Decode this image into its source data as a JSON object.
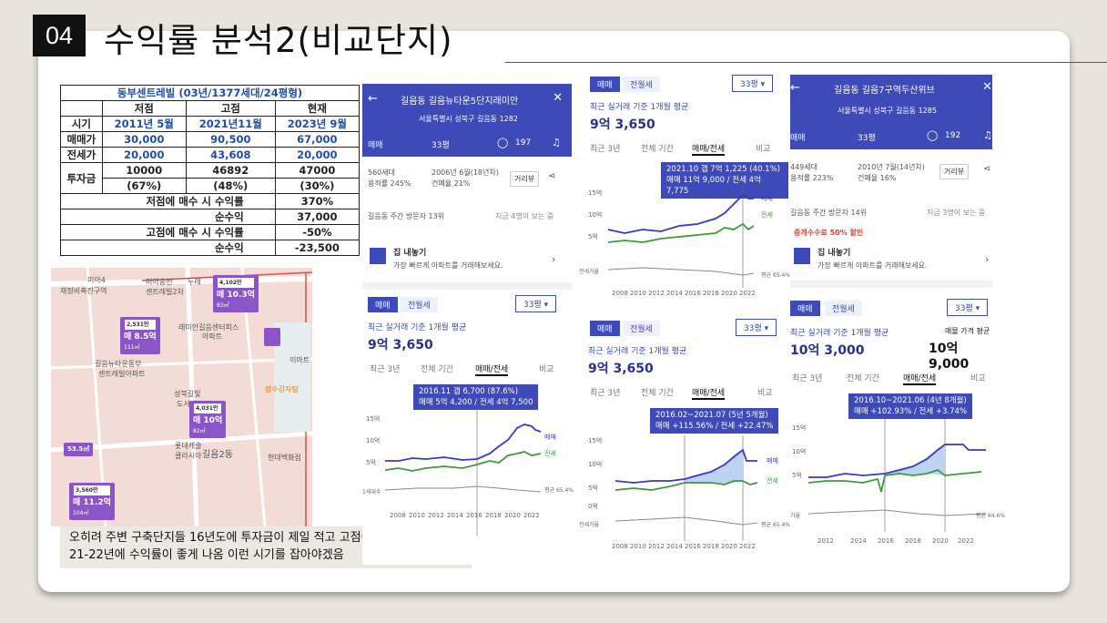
{
  "slide": {
    "number": "04",
    "title": "수익률 분석2(비교단지)"
  },
  "table": {
    "header": "동부센트레빌 (03년/1377세대/24평형)",
    "cols": [
      "저점",
      "고점",
      "현재"
    ],
    "rows": [
      {
        "label": "시기",
        "v": [
          "2011년 5월",
          "2021년11월",
          "2023년 9월"
        ]
      },
      {
        "label": "매매가",
        "v": [
          "30,000",
          "90,500",
          "67,000"
        ]
      },
      {
        "label": "전세가",
        "v": [
          "20,000",
          "43,608",
          "20,000"
        ]
      },
      {
        "label": "투자금",
        "v": [
          "10000",
          "46892",
          "47000"
        ],
        "v2": [
          "(67%)",
          "(48%)",
          "(30%)"
        ]
      }
    ],
    "summary": [
      {
        "label": "저점에 매수 시 수익률",
        "value": "370%"
      },
      {
        "label": "순수익",
        "value": "37,000"
      },
      {
        "label": "고점에 매수 시 수익률",
        "value": "-50%"
      },
      {
        "label": "순수익",
        "value": "-23,500"
      }
    ]
  },
  "map": {
    "labels": [
      "미아4",
      "재정비촉진구역",
      "미아송천",
      "센트레빌2차",
      "두레",
      "래미안길음센터피스",
      "아파트",
      "길음뉴타운동부",
      "센트레빌아파트",
      "이마트",
      "성북길빛",
      "도서관",
      "장수감자탕",
      "롯데캐슬",
      "클라시아",
      "길음2동",
      "현대백화점"
    ],
    "markers": [
      {
        "top": "2,531만",
        "price": "매 8.5억",
        "area": "111㎡"
      },
      {
        "top": "4,102만",
        "price": "매 10.3억",
        "area": "83㎡"
      },
      {
        "top": "4,031만",
        "price": "매 10억",
        "area": "82㎡"
      },
      {
        "top": "3,560만",
        "price": "매 11.2억",
        "area": "104㎡"
      }
    ],
    "extra": "53.5㎡"
  },
  "caption": "오히려 주변 구축단지들 16년도에 투자금이 제일 적고 고점이\n21-22년에 수익률이 좋게 나옴 이런 시기를 잡아야겠음",
  "panelA": {
    "name": "길음동 길음뉴타운5단지래미안",
    "address": "서울특별시 성북구 길음동 1282",
    "trade": "매매",
    "size": "33평",
    "comments": "197",
    "households": "560세대",
    "built": "2006년 6월(18년차)",
    "far": "용적률 245%",
    "bcr": "건폐율 21%",
    "street": "거리뷰",
    "visitors": "길음동 주간 방문자 13위",
    "now": "지금 4명이 보는 중",
    "home_title": "집 내놓기",
    "home_desc": "가장 빠르게 아파트를 거래해보세요.",
    "seg_on": "매매",
    "seg_off": "전월세",
    "dropdown": "33평 ▾",
    "subtitle": "최근 실거래 기준 1개월 평균",
    "price": "9억 3,650",
    "tabs": [
      "최근 3년",
      "전체 기간",
      "매매/전세",
      "비교"
    ],
    "tip1": "2016.11  갭 6,700 (87.6%)",
    "tip2": "매매 5억 4,200 / 전세 4억 7,500",
    "yticks": [
      "15억",
      "10억",
      "5억",
      "1세대수"
    ],
    "xticks": [
      "2008",
      "2010",
      "2012",
      "2014",
      "2016",
      "2018",
      "2020",
      "2022"
    ],
    "legend": [
      "매매",
      "전세"
    ],
    "avg": "평균 65.4%"
  },
  "panelB": {
    "seg_on": "매매",
    "seg_off": "전월세",
    "dropdown": "33평 ▾",
    "subtitle": "최근 실거래 기준 1개월 평균",
    "price": "9억 3,650",
    "tabs": [
      "최근 3년",
      "전체 기간",
      "매매/전세",
      "비교"
    ],
    "tip1": "2021.10  갭 7억 1,225 (40.1%)",
    "tip2": "매매 11억 9,000 / 전세 4억 7,775",
    "yticks": [
      "15억",
      "10억",
      "5억"
    ],
    "xticks": [
      "2008",
      "2010",
      "2012",
      "2014",
      "2016",
      "2018",
      "2020",
      "2022"
    ],
    "legend": [
      "매매",
      "전세"
    ],
    "vol": "전세가율",
    "avg": "평균 65.4%"
  },
  "panelC": {
    "seg_on": "매매",
    "seg_off": "전월세",
    "dropdown": "33평 ▾",
    "subtitle": "최근 실거래 기준 1개월 평균",
    "price": "9억 3,650",
    "tabs": [
      "최근 3년",
      "전체 기간",
      "매매/전세",
      "비교"
    ],
    "tip1": "2016.02~2021.07 (5년 5개월)",
    "tip2": "매매 +115.56%  /  전세 +22.47%",
    "yticks": [
      "15억",
      "10억",
      "5억",
      "0억"
    ],
    "xticks": [
      "2008",
      "2010",
      "2012",
      "2014",
      "2016",
      "2018",
      "2020",
      "2022"
    ],
    "legend": [
      "매매",
      "전세"
    ],
    "vol": "전세가율",
    "avg": "평균 65.4%"
  },
  "panelD": {
    "name": "길음동 길음7구역두산위브",
    "address": "서울특별시 성북구 길음동 1285",
    "trade": "매매",
    "size": "33평",
    "comments": "192",
    "households": "449세대",
    "built": "2010년 7월(14년차)",
    "far": "용적률 223%",
    "bcr": "건폐율 16%",
    "street": "거리뷰",
    "visitors": "길음동 주간 방문자 14위",
    "now": "지금 3명이 보는 중",
    "fee": "중개수수료 50% 할인",
    "home_title": "집 내놓기",
    "home_desc": "가장 빠르게 아파트를 거래해보세요.",
    "seg_on": "매매",
    "seg_off": "전월세",
    "dropdown": "33평 ▾",
    "subtitle": "최근 실거래 기준 1개월 평균",
    "price": "10억 3,000",
    "subtitle2": "매물 가격 평균",
    "price2": "10억 9,000",
    "tabs": [
      "최근 3년",
      "전체 기간",
      "매매/전세",
      "비교"
    ],
    "tip1": "2016.10~2021.06 (4년 8개월)",
    "tip2": "매매 +102.93%  /  전세 +3.74%",
    "yticks": [
      "15억",
      "10억",
      "5억"
    ],
    "xticks": [
      "2012",
      "2014",
      "2016",
      "2018",
      "2020",
      "2022"
    ],
    "avg": "평균 64.6%",
    "vol": "가율"
  },
  "colors": {
    "accent": "#3d4ab8",
    "sale": "#3b36c8",
    "lease": "#3f9a3b"
  }
}
